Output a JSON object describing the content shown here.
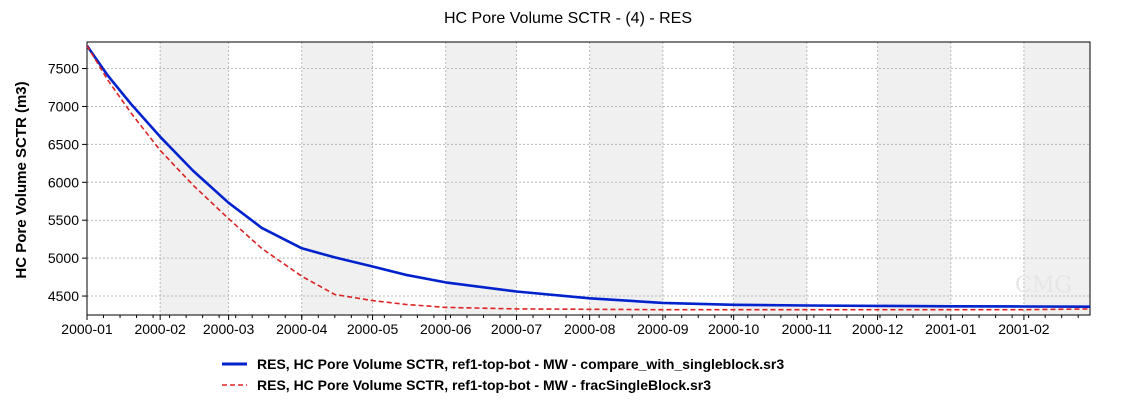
{
  "chart_data": {
    "type": "line",
    "title": "HC Pore Volume SCTR - (4) - RES",
    "ylabel": "HC Pore Volume SCTR (m3)",
    "xlabel": "",
    "xlim": [
      "2000-01-01",
      "2001-03-01"
    ],
    "ylim": [
      4250,
      7850
    ],
    "x_ticks": [
      "2000-01",
      "2000-02",
      "2000-03",
      "2000-04",
      "2000-05",
      "2000-06",
      "2000-07",
      "2000-08",
      "2000-09",
      "2000-10",
      "2000-11",
      "2000-12",
      "2001-01",
      "2001-02"
    ],
    "y_ticks": [
      4500,
      5000,
      5500,
      6000,
      6500,
      7000,
      7500
    ],
    "grid": true,
    "legend_position": "bottom",
    "watermark": "CMG",
    "series": [
      {
        "name": "RES, HC Pore Volume SCTR, ref1-top-bot - MW - compare_with_singleblock.sr3",
        "color": "#0022cc",
        "style": "solid",
        "x": [
          "2000-01-01",
          "2000-01-10",
          "2000-01-20",
          "2000-02-01",
          "2000-02-15",
          "2000-03-01",
          "2000-03-15",
          "2000-04-01",
          "2000-04-15",
          "2000-05-01",
          "2000-05-15",
          "2000-06-01",
          "2000-07-01",
          "2000-08-01",
          "2000-09-01",
          "2000-10-01",
          "2000-11-01",
          "2000-12-01",
          "2001-01-01",
          "2001-02-01",
          "2001-03-01"
        ],
        "y": [
          7800,
          7400,
          7020,
          6600,
          6150,
          5730,
          5400,
          5130,
          5010,
          4890,
          4780,
          4680,
          4560,
          4470,
          4410,
          4385,
          4375,
          4370,
          4365,
          4362,
          4360
        ]
      },
      {
        "name": "RES, HC Pore Volume SCTR, ref1-top-bot - MW - fracSingleBlock.sr3",
        "color": "#dd2222",
        "style": "dashed",
        "x": [
          "2000-01-01",
          "2000-01-10",
          "2000-01-20",
          "2000-02-01",
          "2000-02-15",
          "2000-03-01",
          "2000-03-15",
          "2000-04-01",
          "2000-04-15",
          "2000-05-01",
          "2000-05-15",
          "2000-06-01",
          "2000-07-01",
          "2000-08-01",
          "2000-09-01",
          "2000-10-01",
          "2000-11-01",
          "2000-12-01",
          "2001-01-01",
          "2001-02-01",
          "2001-03-01"
        ],
        "y": [
          7800,
          7340,
          6900,
          6420,
          5960,
          5520,
          5130,
          4760,
          4520,
          4440,
          4390,
          4350,
          4330,
          4325,
          4320,
          4320,
          4320,
          4320,
          4320,
          4320,
          4330
        ]
      }
    ]
  }
}
